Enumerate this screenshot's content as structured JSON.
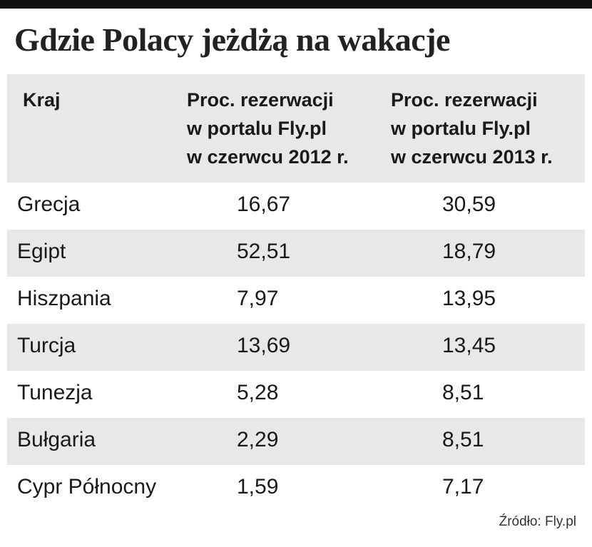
{
  "title": "Gdzie Polacy jeżdżą na wakacje",
  "colors": {
    "header_bg": "#e8e8e8",
    "stripe_bg": "#e8e8e8",
    "top_bar": "#111111",
    "text": "#1a1a1a"
  },
  "chart_data": {
    "type": "table",
    "title": "Gdzie Polacy jeżdżą na wakacje",
    "columns": [
      "Kraj",
      "Proc. rezerwacji\nw portalu Fly.pl\nw czerwcu 2012 r.",
      "Proc. rezerwacji\nw portalu Fly.pl\nw czerwcu 2013 r."
    ],
    "rows": [
      [
        "Grecja",
        "16,67",
        "30,59"
      ],
      [
        "Egipt",
        "52,51",
        "18,79"
      ],
      [
        "Hiszpania",
        "7,97",
        "13,95"
      ],
      [
        "Turcja",
        "13,69",
        "13,45"
      ],
      [
        "Tunezja",
        "5,28",
        "8,51"
      ],
      [
        "Bułgaria",
        "2,29",
        "8,51"
      ],
      [
        "Cypr Północny",
        "1,59",
        "7,17"
      ]
    ]
  },
  "source": "Źródło: Fly.pl"
}
